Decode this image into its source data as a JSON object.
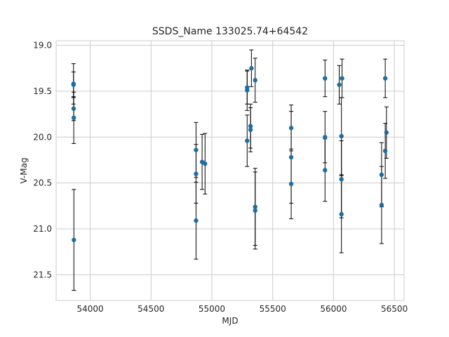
{
  "chart_data": {
    "type": "scatter",
    "title": "SSDS_Name 133025.74+64542",
    "xlabel": "MJD",
    "ylabel": "V-Mag",
    "xlim": [
      53720,
      56580
    ],
    "ylim": [
      21.78,
      18.95
    ],
    "y_inverted": true,
    "grid": true,
    "xticks": [
      54000,
      54500,
      55000,
      55500,
      56000,
      56500
    ],
    "yticks": [
      19.0,
      19.5,
      20.0,
      20.5,
      21.0,
      21.5
    ],
    "xtick_labels": [
      "54000",
      "54500",
      "55000",
      "55500",
      "56000",
      "56500"
    ],
    "ytick_labels": [
      "19.0",
      "19.5",
      "20.0",
      "20.5",
      "21.0",
      "21.5"
    ],
    "marker_color": "#1f6ea0",
    "errorbar_color": "#000000",
    "points": [
      {
        "x": 53863,
        "y": 19.42,
        "err": 0.22
      },
      {
        "x": 53863,
        "y": 19.43,
        "err": 0.14
      },
      {
        "x": 53864,
        "y": 19.69,
        "err": 0.13
      },
      {
        "x": 53865,
        "y": 19.79,
        "err": 0.28
      },
      {
        "x": 53866,
        "y": 21.12,
        "err": 0.55
      },
      {
        "x": 54870,
        "y": 20.14,
        "err": 0.3
      },
      {
        "x": 54870,
        "y": 20.4,
        "err": 0.32
      },
      {
        "x": 54870,
        "y": 20.91,
        "err": 0.42
      },
      {
        "x": 54920,
        "y": 20.27,
        "err": 0.3
      },
      {
        "x": 54944,
        "y": 20.29,
        "err": 0.33
      },
      {
        "x": 55290,
        "y": 19.46,
        "err": 0.18
      },
      {
        "x": 55290,
        "y": 19.49,
        "err": 0.22
      },
      {
        "x": 55290,
        "y": 20.04,
        "err": 0.28
      },
      {
        "x": 55318,
        "y": 19.88,
        "err": 0.24
      },
      {
        "x": 55318,
        "y": 19.92,
        "err": 0.24
      },
      {
        "x": 55325,
        "y": 19.25,
        "err": 0.2
      },
      {
        "x": 55356,
        "y": 19.38,
        "err": 0.24
      },
      {
        "x": 55356,
        "y": 20.76,
        "err": 0.42
      },
      {
        "x": 55356,
        "y": 20.8,
        "err": 0.42
      },
      {
        "x": 55652,
        "y": 19.9,
        "err": 0.25
      },
      {
        "x": 55652,
        "y": 20.22,
        "err": 0.5
      },
      {
        "x": 55652,
        "y": 20.51,
        "err": 0.38
      },
      {
        "x": 55930,
        "y": 19.36,
        "err": 0.2
      },
      {
        "x": 55930,
        "y": 20.0,
        "err": 0.28
      },
      {
        "x": 55930,
        "y": 20.36,
        "err": 0.34
      },
      {
        "x": 56047,
        "y": 19.43,
        "err": 0.21
      },
      {
        "x": 56065,
        "y": 19.99,
        "err": 0.42
      },
      {
        "x": 56065,
        "y": 20.46,
        "err": 0.42
      },
      {
        "x": 56065,
        "y": 20.84,
        "err": 0.42
      },
      {
        "x": 56070,
        "y": 19.36,
        "err": 0.21
      },
      {
        "x": 56395,
        "y": 20.41,
        "err": 0.35
      },
      {
        "x": 56395,
        "y": 20.74,
        "err": 0.42
      },
      {
        "x": 56425,
        "y": 19.36,
        "err": 0.21
      },
      {
        "x": 56425,
        "y": 20.15,
        "err": 0.3
      },
      {
        "x": 56435,
        "y": 19.95,
        "err": 0.28
      }
    ]
  }
}
